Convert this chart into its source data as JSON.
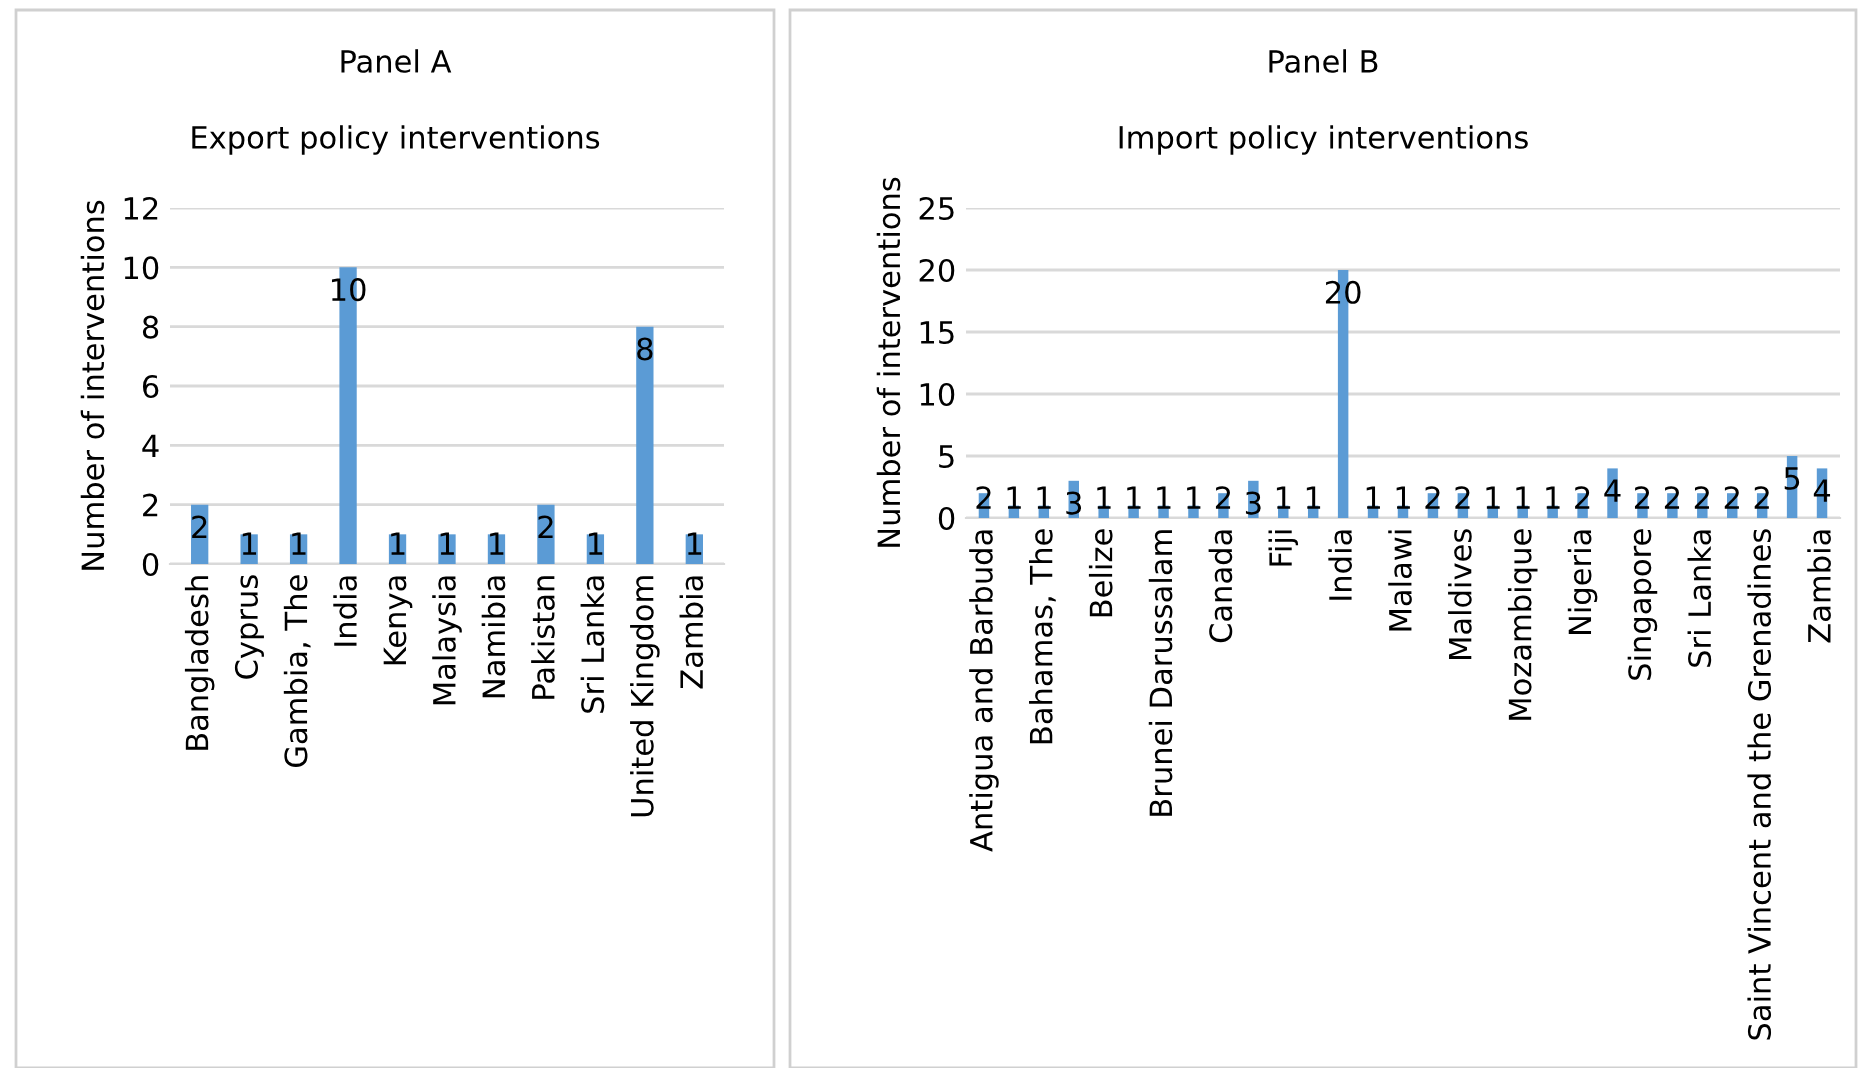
{
  "chart_data": [
    {
      "type": "bar",
      "title": "Panel A",
      "subtitle": "Export policy interventions",
      "ylabel": "Number of interventions",
      "categories": [
        "Bangladesh",
        "Cyprus",
        "Gambia, The",
        "India",
        "Kenya",
        "Malaysia",
        "Namibia",
        "Pakistan",
        "Sri Lanka",
        "United Kingdom",
        "Zambia"
      ],
      "values": [
        2,
        1,
        1,
        10,
        1,
        1,
        1,
        2,
        1,
        8,
        1
      ],
      "color": "#5b9bd5",
      "ylim": [
        0,
        12
      ],
      "yticks": [
        0,
        2,
        4,
        6,
        8,
        10,
        12
      ],
      "grid": "y",
      "data_labels": true,
      "legend": false
    },
    {
      "type": "bar",
      "title": "Panel B",
      "subtitle": "Import policy interventions",
      "ylabel": "Number of interventions",
      "categories": [
        "Antigua and Barbuda",
        null,
        "Bahamas, The",
        null,
        "Belize",
        null,
        "Brunei Darussalam",
        null,
        "Canada",
        null,
        "Fiji",
        null,
        "India",
        null,
        "Malawi",
        null,
        "Maldives",
        null,
        "Mozambique",
        null,
        "Nigeria",
        null,
        "Singapore",
        null,
        "Sri Lanka",
        null,
        "Saint Vincent and the Grenadines",
        null,
        "Zambia"
      ],
      "values": [
        2,
        1,
        1,
        3,
        1,
        1,
        1,
        1,
        2,
        3,
        1,
        1,
        20,
        1,
        1,
        2,
        2,
        1,
        1,
        1,
        2,
        4,
        2,
        2,
        2,
        2,
        2,
        5,
        4
      ],
      "color": "#5b9bd5",
      "ylim": [
        0,
        25
      ],
      "yticks": [
        0,
        5,
        10,
        15,
        20,
        25
      ],
      "grid": "y",
      "data_labels": true,
      "legend": false
    }
  ]
}
